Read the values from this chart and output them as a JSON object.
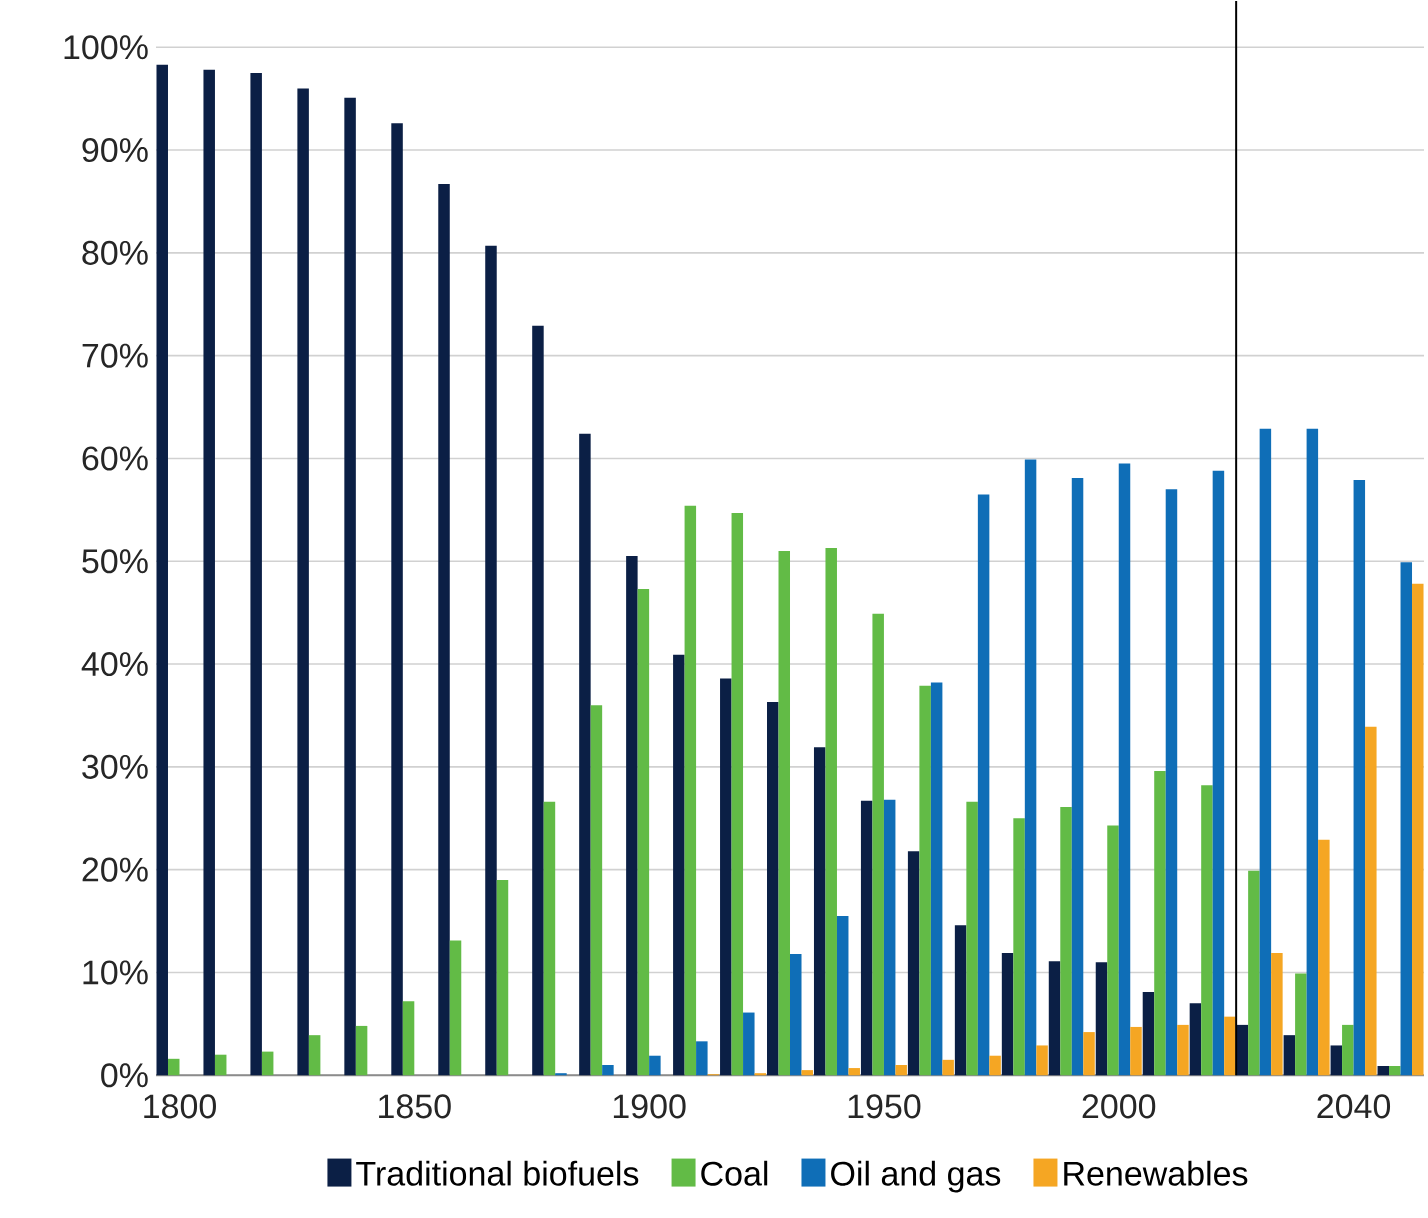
{
  "chart_data": {
    "type": "bar",
    "categories": [
      "1800",
      null,
      null,
      null,
      null,
      "1850",
      null,
      null,
      null,
      null,
      "1900",
      null,
      null,
      null,
      null,
      "1950",
      null,
      null,
      null,
      null,
      "2000",
      null,
      null,
      null,
      null,
      "2040",
      null
    ],
    "series": [
      {
        "name": "Traditional biofuels",
        "color": "#0b1f45",
        "values": [
          98.3,
          97.8,
          97.5,
          96.0,
          95.1,
          92.6,
          86.7,
          80.7,
          72.9,
          62.4,
          50.5,
          40.9,
          38.6,
          36.3,
          31.9,
          26.7,
          21.8,
          14.6,
          11.9,
          11.1,
          11.0,
          8.1,
          7.0,
          4.9,
          3.9,
          2.9,
          0.9
        ]
      },
      {
        "name": "Coal",
        "color": "#62bb46",
        "values": [
          1.6,
          2.0,
          2.3,
          3.9,
          4.8,
          7.2,
          13.1,
          19.0,
          26.6,
          36.0,
          47.3,
          55.4,
          54.7,
          51.0,
          51.3,
          44.9,
          37.9,
          26.6,
          25.0,
          26.1,
          24.3,
          29.6,
          28.2,
          19.9,
          9.9,
          4.9,
          0.9
        ]
      },
      {
        "name": "Oil and gas",
        "color": "#0f6eb7",
        "values": [
          0,
          0,
          0,
          0,
          0,
          0,
          0,
          0,
          0.2,
          1.0,
          1.9,
          3.3,
          6.1,
          11.8,
          15.5,
          26.8,
          38.2,
          56.5,
          59.9,
          58.1,
          59.5,
          57.0,
          58.8,
          62.9,
          62.9,
          57.9,
          49.9
        ]
      },
      {
        "name": "Renewables",
        "color": "#f5a623",
        "values": [
          0,
          0,
          0,
          0,
          0,
          0,
          0,
          0,
          0,
          0,
          0,
          0.1,
          0.2,
          0.5,
          0.7,
          1.0,
          1.5,
          1.9,
          2.9,
          4.2,
          4.7,
          4.9,
          5.7,
          11.9,
          22.9,
          33.9,
          47.8
        ]
      }
    ],
    "ylim": [
      0,
      100
    ],
    "yticks": [
      {
        "value": 0,
        "label": "0%"
      },
      {
        "value": 10,
        "label": "10%"
      },
      {
        "value": 20,
        "label": "20%"
      },
      {
        "value": 30,
        "label": "30%"
      },
      {
        "value": 40,
        "label": "40%"
      },
      {
        "value": 50,
        "label": "50%"
      },
      {
        "value": 60,
        "label": "60%"
      },
      {
        "value": 70,
        "label": "70%"
      },
      {
        "value": 80,
        "label": "80%"
      },
      {
        "value": 90,
        "label": "90%"
      },
      {
        "value": 100,
        "label": "100%"
      }
    ],
    "grid": "y",
    "legend": "bottom"
  }
}
